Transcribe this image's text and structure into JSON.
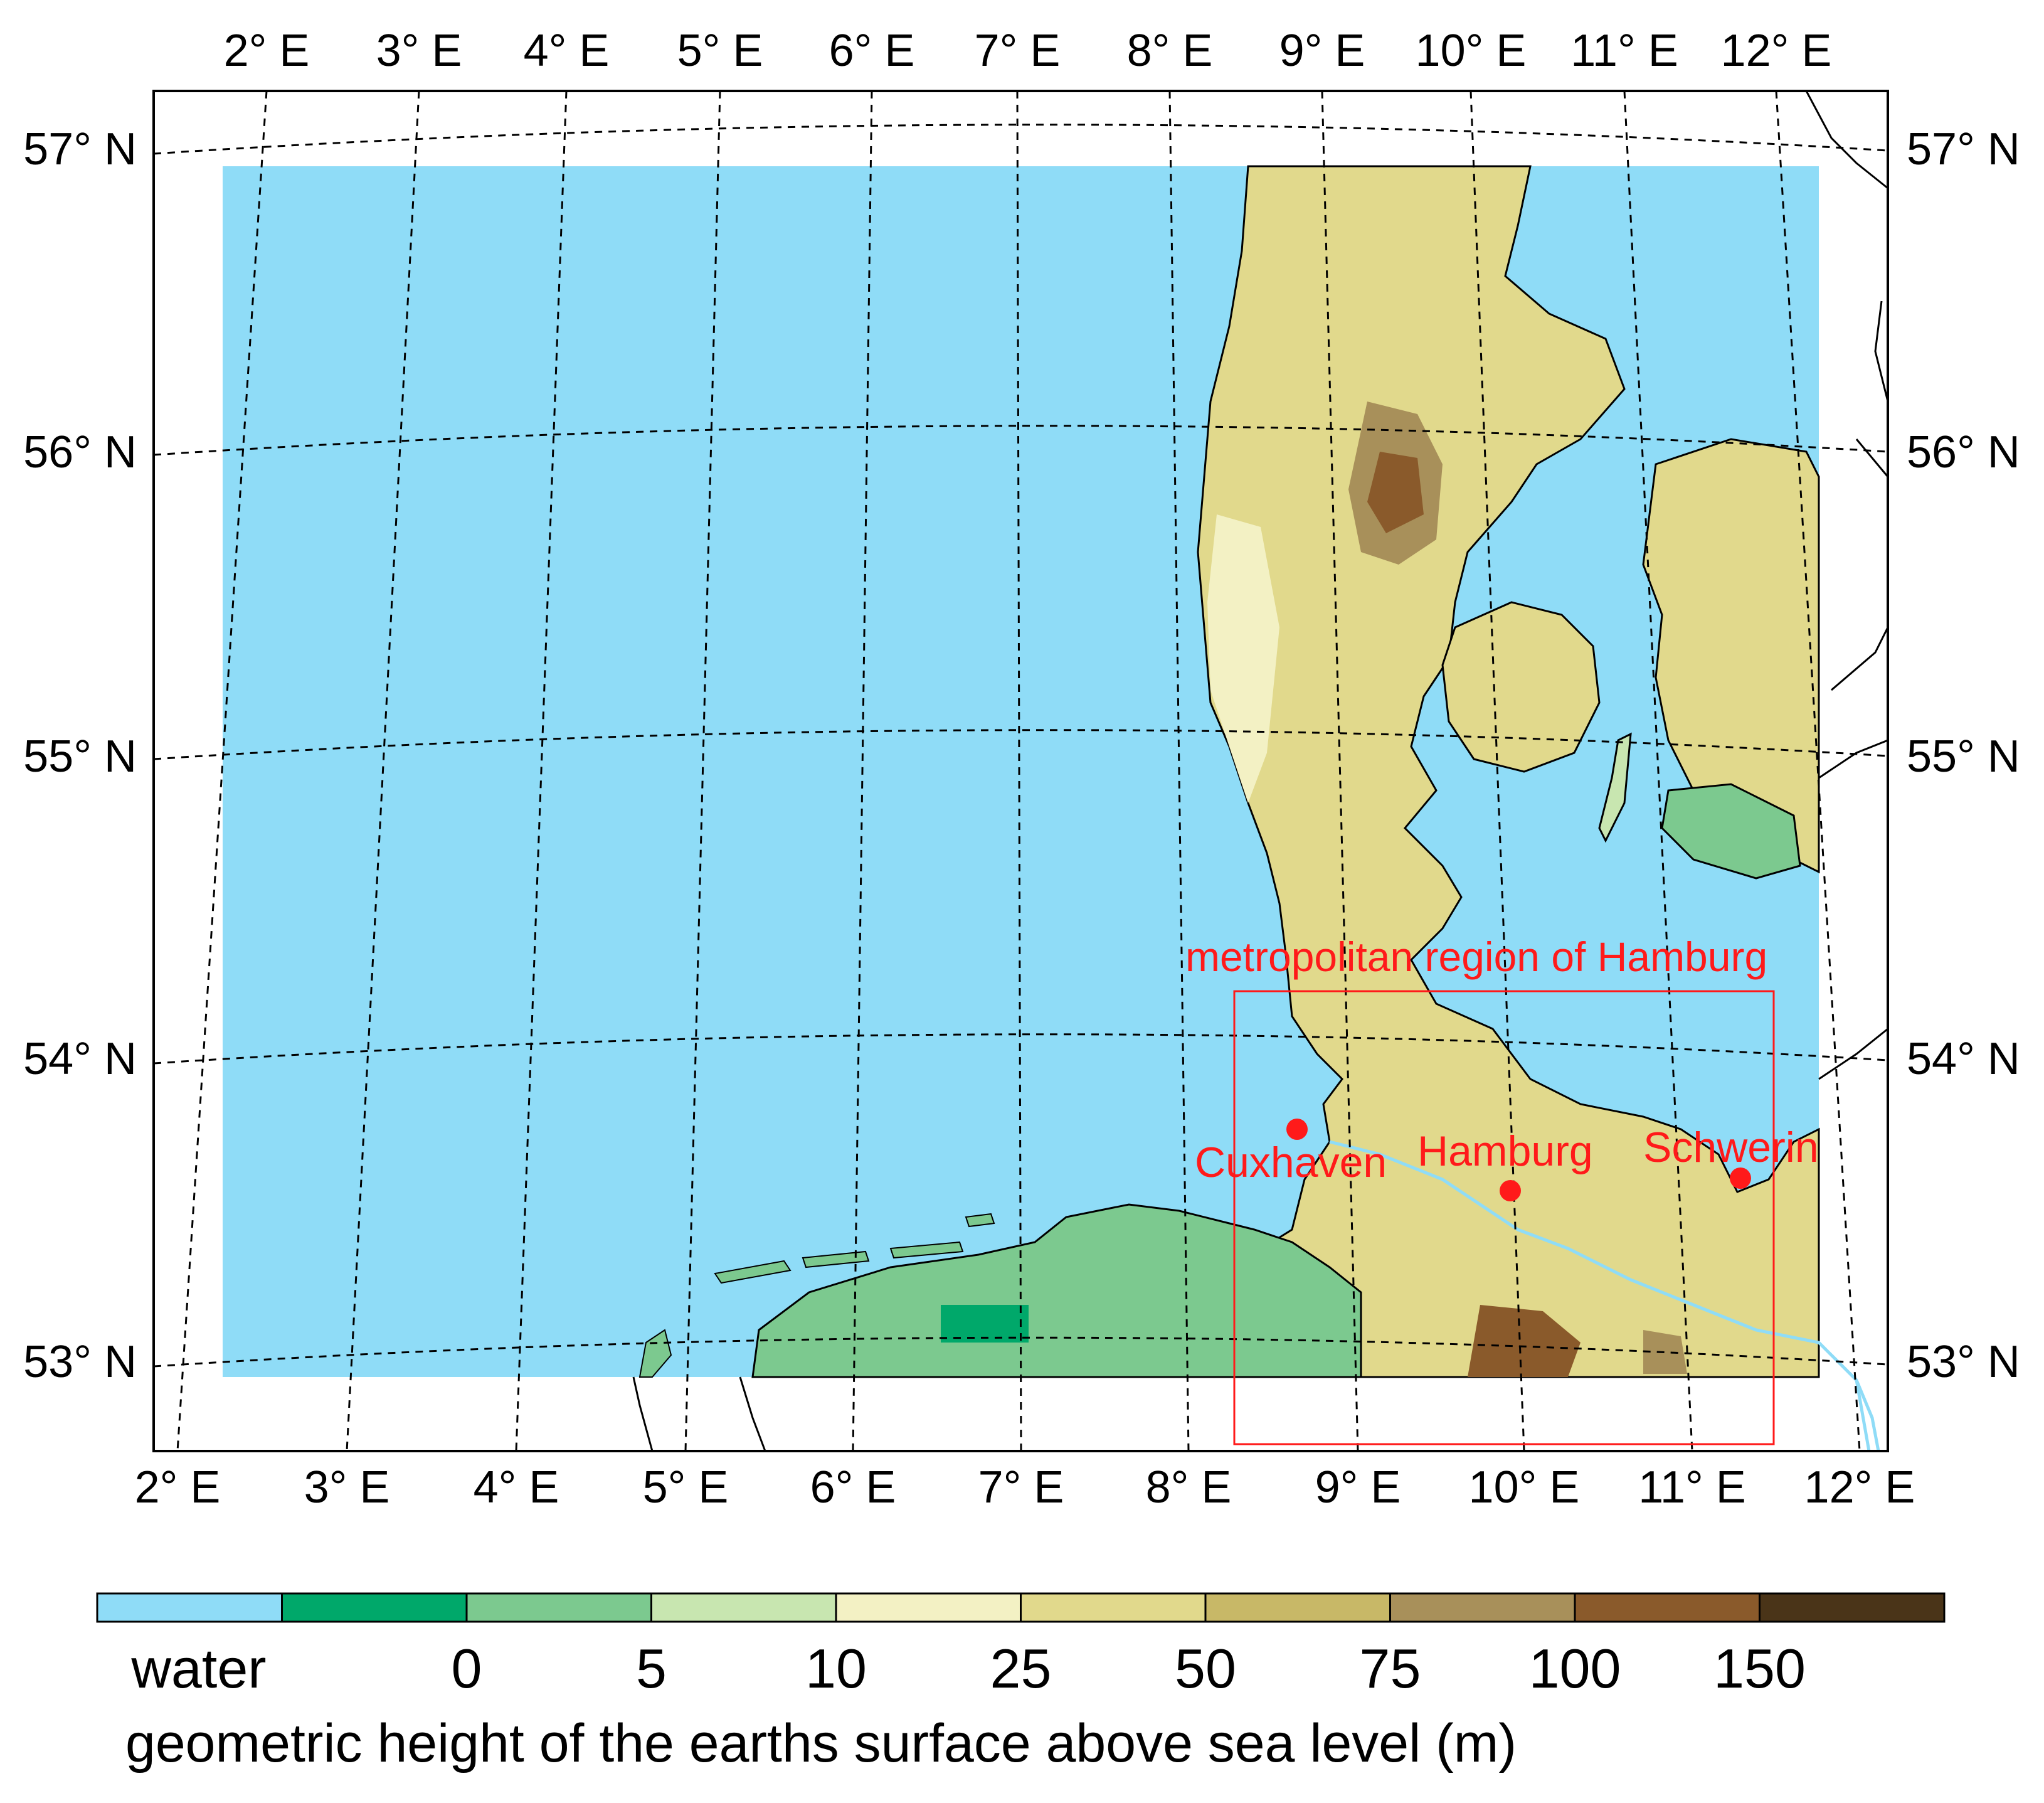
{
  "colors": {
    "water": "#8fdcf7",
    "land_dark_green": "#00a86a",
    "land_green": "#7cc98f",
    "land_light_green": "#c8e6b0",
    "land_pale": "#f3f1c4",
    "land_yellow": "#e1d98c",
    "land_olive": "#c8b867",
    "land_brown_light": "#a8905a",
    "land_brown": "#8a5a2b",
    "land_dark_brown": "#4a3418",
    "annotation_red": "#ff1a1a",
    "coast": "#000000"
  },
  "map": {
    "top_lon_labels": [
      "2° E",
      "3° E",
      "4° E",
      "5° E",
      "6° E",
      "7° E",
      "8° E",
      "9° E",
      "10° E",
      "11° E",
      "12° E"
    ],
    "bottom_lon_labels": [
      "2° E",
      "3° E",
      "4° E",
      "5° E",
      "6° E",
      "7° E",
      "8° E",
      "9° E",
      "10° E",
      "11° E",
      "12° E"
    ],
    "lat_labels": [
      "57° N",
      "56° N",
      "55° N",
      "54° N",
      "53° N"
    ],
    "region_label": "metropolitan region of Hamburg",
    "cities": [
      {
        "name": "Cuxhaven"
      },
      {
        "name": "Hamburg"
      },
      {
        "name": "Schwerin"
      }
    ]
  },
  "colorbar": {
    "title": "geometric height of the earths surface above sea level (m)",
    "labels": [
      "water",
      "0",
      "5",
      "10",
      "25",
      "50",
      "75",
      "100",
      "150"
    ],
    "swatches": [
      "#8fdcf7",
      "#00a86a",
      "#7cc98f",
      "#c8e6b0",
      "#f3f1c4",
      "#e1d98c",
      "#c8b867",
      "#a8905a",
      "#8a5a2b",
      "#4a3418"
    ]
  }
}
